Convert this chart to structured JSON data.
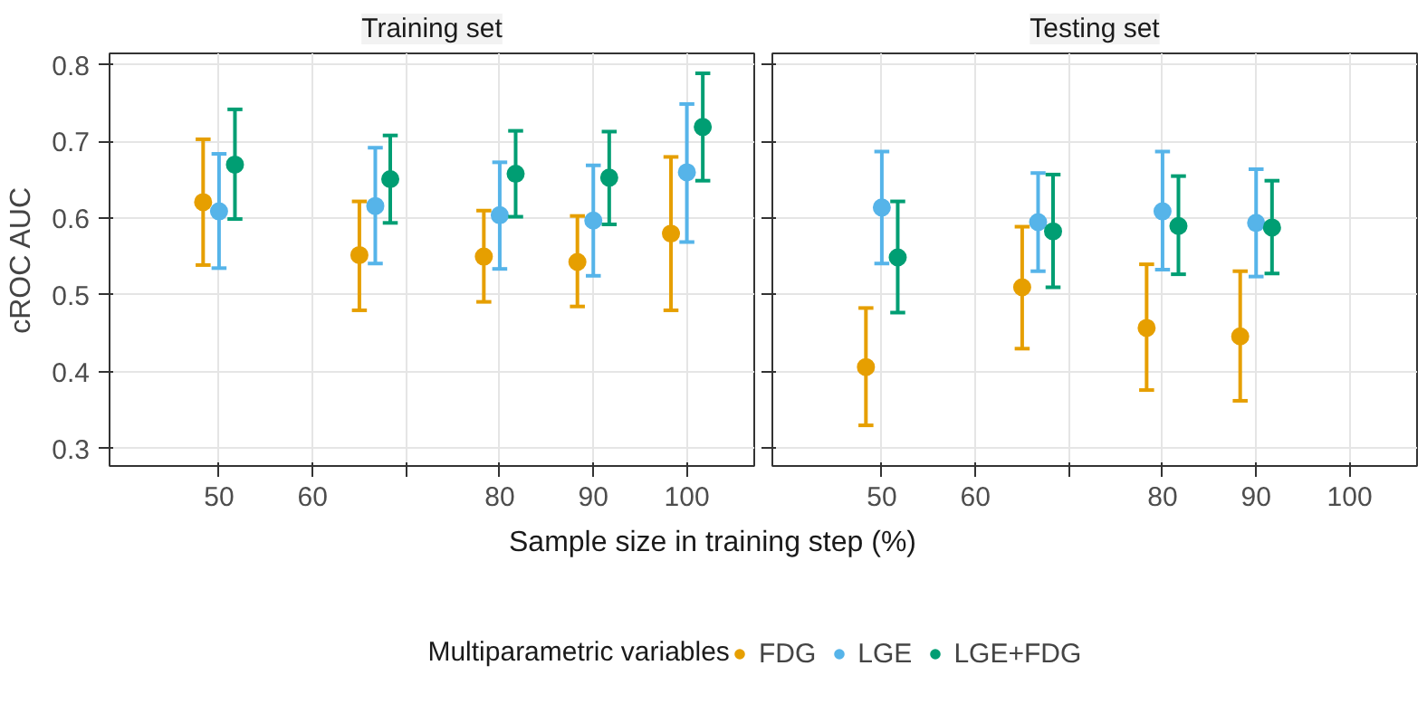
{
  "chart_data": [
    {
      "type": "scatter",
      "title": "Training set",
      "ylabel": "cROC AUC",
      "xlabel": "Sample size in training step (%)",
      "legend_title": "Multiparametric variables",
      "legend": "bottom",
      "grid": true,
      "marker": "circle",
      "xlim": [
        38.3,
        107.2
      ],
      "xticks": [
        50,
        60,
        {
          "value": 70,
          "label": null
        },
        80,
        90,
        100
      ],
      "ylim": [
        0.277,
        0.815
      ],
      "yticks": [
        0.3,
        0.4,
        0.5,
        0.6,
        0.7,
        0.8
      ],
      "series": [
        {
          "name": "FDG",
          "color": "#e69f00",
          "x": [
            48.3,
            65.0,
            78.3,
            88.3,
            98.3
          ],
          "values": [
            0.621,
            0.552,
            0.55,
            0.543,
            0.58
          ],
          "errors": [
            [
              0.539,
              0.703
            ],
            [
              0.48,
              0.622
            ],
            [
              0.491,
              0.61
            ],
            [
              0.485,
              0.603
            ],
            [
              0.48,
              0.68
            ]
          ]
        },
        {
          "name": "LGE",
          "color": "#56b4e9",
          "x": [
            50,
            66.7,
            80,
            90,
            100
          ],
          "values": [
            0.609,
            0.616,
            0.604,
            0.597,
            0.66
          ],
          "errors": [
            [
              0.535,
              0.684
            ],
            [
              0.541,
              0.692
            ],
            [
              0.534,
              0.673
            ],
            [
              0.525,
              0.669
            ],
            [
              0.569,
              0.749
            ]
          ]
        },
        {
          "name": "LGE+FDG",
          "color": "#009e73",
          "x": [
            51.7,
            68.3,
            81.7,
            91.7,
            101.7
          ],
          "values": [
            0.67,
            0.651,
            0.658,
            0.653,
            0.719
          ],
          "errors": [
            [
              0.599,
              0.742
            ],
            [
              0.594,
              0.708
            ],
            [
              0.602,
              0.714
            ],
            [
              0.592,
              0.713
            ],
            [
              0.649,
              0.789
            ]
          ]
        }
      ]
    },
    {
      "type": "scatter",
      "title": "Testing set",
      "grid": true,
      "marker": "circle",
      "tick_labels": "x",
      "xlim": [
        38.3,
        107.2
      ],
      "xticks": [
        50,
        60,
        {
          "value": 70,
          "label": null
        },
        80,
        90,
        100
      ],
      "ylim": [
        0.277,
        0.815
      ],
      "yticks": [
        0.3,
        0.4,
        0.5,
        0.6,
        0.7,
        0.8
      ],
      "series": [
        {
          "color": "#e69f00",
          "x": [
            48.3,
            65.0,
            78.3,
            88.3
          ],
          "values": [
            0.406,
            0.51,
            0.457,
            0.446
          ],
          "errors": [
            [
              0.33,
              0.483
            ],
            [
              0.43,
              0.589
            ],
            [
              0.376,
              0.54
            ],
            [
              0.362,
              0.531
            ]
          ]
        },
        {
          "color": "#56b4e9",
          "x": [
            50,
            66.7,
            80,
            90
          ],
          "values": [
            0.614,
            0.595,
            0.609,
            0.594
          ],
          "errors": [
            [
              0.541,
              0.687
            ],
            [
              0.531,
              0.659
            ],
            [
              0.533,
              0.687
            ],
            [
              0.524,
              0.664
            ]
          ]
        },
        {
          "color": "#009e73",
          "x": [
            51.7,
            68.3,
            81.7,
            91.7
          ],
          "values": [
            0.549,
            0.583,
            0.59,
            0.588
          ],
          "errors": [
            [
              0.477,
              0.622
            ],
            [
              0.51,
              0.657
            ],
            [
              0.527,
              0.655
            ],
            [
              0.528,
              0.649
            ]
          ]
        }
      ]
    }
  ]
}
